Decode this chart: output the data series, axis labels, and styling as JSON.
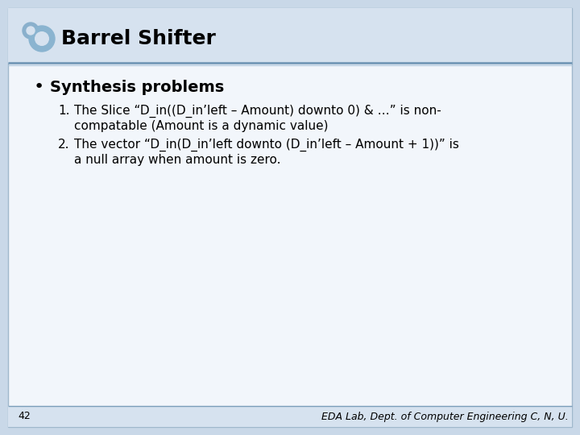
{
  "title": "Barrel Shifter",
  "bullet": "Synthesis problems",
  "item1_line1": "The Slice “D_in((D_in’left – Amount) downto 0) & …” is non-",
  "item1_line2": "compatable (Amount is a dynamic value)",
  "item2_line1": "The vector “D_in(D_in’left downto (D_in’left – Amount + 1))” is",
  "item2_line2": "a null array when amount is zero.",
  "page_number": "42",
  "footer": "EDA Lab, Dept. of Computer Engineering C, N, U.",
  "outer_bg": "#c9d8e8",
  "slide_bg": "#f2f6fb",
  "header_bg": "#d6e2ef",
  "footer_bg": "#d6e2ef",
  "header_line1": "#7a9dba",
  "header_line2": "#b0c8dc",
  "text_color": "#000000",
  "title_fontsize": 18,
  "bullet_fontsize": 14,
  "item_fontsize": 11,
  "footer_fontsize": 9,
  "page_fontsize": 9
}
